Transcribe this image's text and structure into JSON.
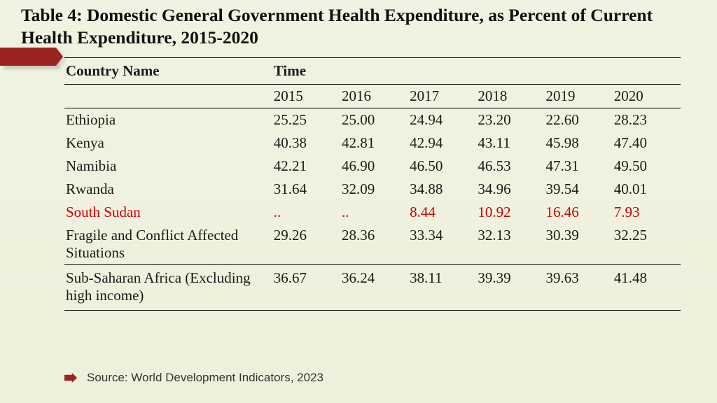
{
  "title": "Table 4: Domestic General Government Health Expenditure, as Percent of Current Health Expenditure, 2015-2020",
  "table": {
    "type": "table",
    "header_country": "Country Name",
    "header_time": "Time",
    "years": [
      "2015",
      "2016",
      "2017",
      "2018",
      "2019",
      "2020"
    ],
    "rows": [
      {
        "name": "Ethiopia",
        "values": [
          "25.25",
          "25.00",
          "24.94",
          "23.20",
          "22.60",
          "28.23"
        ],
        "highlight": false
      },
      {
        "name": "Kenya",
        "values": [
          "40.38",
          "42.81",
          "42.94",
          "43.11",
          "45.98",
          "47.40"
        ],
        "highlight": false
      },
      {
        "name": "Namibia",
        "values": [
          "42.21",
          "46.90",
          "46.50",
          "46.53",
          "47.31",
          "49.50"
        ],
        "highlight": false
      },
      {
        "name": "Rwanda",
        "values": [
          "31.64",
          "32.09",
          "34.88",
          "34.96",
          "39.54",
          "40.01"
        ],
        "highlight": false
      },
      {
        "name": "South Sudan",
        "values": [
          "..",
          "..",
          "8.44",
          "10.92",
          "16.46",
          "7.93"
        ],
        "highlight": true
      },
      {
        "name": "Fragile and Conflict Affected Situations",
        "values": [
          "29.26",
          "28.36",
          "33.34",
          "32.13",
          "30.39",
          "32.25"
        ],
        "highlight": false
      },
      {
        "name": "Sub-Saharan Africa (Excluding high income)",
        "values": [
          "36.67",
          "36.24",
          "38.11",
          "39.39",
          "39.63",
          "41.48"
        ],
        "highlight": false
      }
    ],
    "highlight_color": "#cc0000",
    "text_color": "#1a1a1a",
    "border_color": "#000000",
    "font_family": "Times New Roman",
    "font_size": 21
  },
  "accent": {
    "color": "#9b2321"
  },
  "source_label": "Source: World Development Indicators, 2023",
  "background_gradient": [
    "#f1f2e1",
    "#eef0db"
  ]
}
